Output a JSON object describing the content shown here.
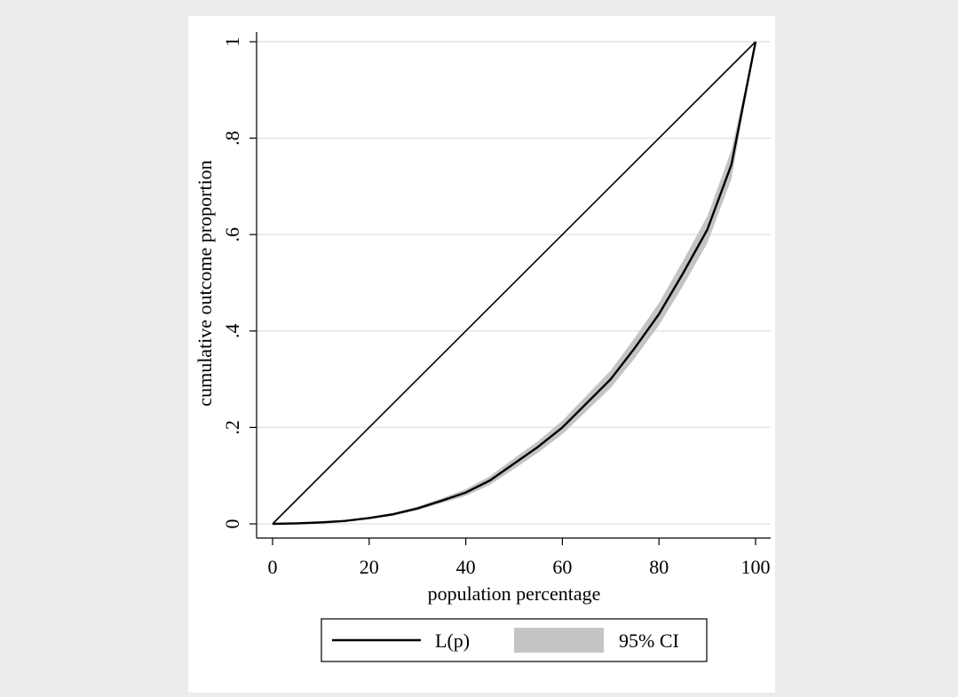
{
  "chart_data": {
    "type": "line",
    "title": "",
    "xlabel": "population percentage",
    "ylabel": "cumulative outcome proportion",
    "xlim": [
      0,
      100
    ],
    "ylim": [
      0,
      1
    ],
    "x_ticks": [
      {
        "value": 0,
        "label": "0"
      },
      {
        "value": 20,
        "label": "20"
      },
      {
        "value": 40,
        "label": "40"
      },
      {
        "value": 60,
        "label": "60"
      },
      {
        "value": 80,
        "label": "80"
      },
      {
        "value": 100,
        "label": "100"
      }
    ],
    "y_ticks": [
      {
        "value": 0,
        "label": "0"
      },
      {
        "value": 0.2,
        "label": ".2"
      },
      {
        "value": 0.4,
        "label": ".4"
      },
      {
        "value": 0.6,
        "label": ".6"
      },
      {
        "value": 0.8,
        "label": ".8"
      },
      {
        "value": 1,
        "label": "1"
      }
    ],
    "grid": true,
    "legend_position": "bottom",
    "series": [
      {
        "name": "L(p)",
        "color": "#000000",
        "x": [
          0,
          5,
          10,
          15,
          20,
          25,
          30,
          35,
          40,
          45,
          50,
          55,
          60,
          65,
          70,
          75,
          80,
          85,
          90,
          95,
          100
        ],
        "y": [
          0,
          0.001,
          0.003,
          0.006,
          0.012,
          0.02,
          0.032,
          0.048,
          0.065,
          0.09,
          0.125,
          0.16,
          0.2,
          0.25,
          0.3,
          0.365,
          0.435,
          0.52,
          0.61,
          0.745,
          1.0
        ]
      },
      {
        "name": "equality line",
        "color": "#000000",
        "x": [
          0,
          100
        ],
        "y": [
          0,
          1
        ]
      }
    ],
    "ci_band": {
      "name": "95% CI",
      "color": "#c4c4c4",
      "x": [
        0,
        5,
        10,
        15,
        20,
        25,
        30,
        35,
        40,
        45,
        50,
        55,
        60,
        65,
        70,
        75,
        80,
        85,
        90,
        95,
        100
      ],
      "lower": [
        0,
        0.0005,
        0.002,
        0.005,
        0.01,
        0.017,
        0.028,
        0.043,
        0.058,
        0.081,
        0.114,
        0.148,
        0.186,
        0.234,
        0.282,
        0.344,
        0.412,
        0.494,
        0.582,
        0.715,
        1.0
      ],
      "upper": [
        0,
        0.0015,
        0.004,
        0.007,
        0.014,
        0.023,
        0.036,
        0.053,
        0.072,
        0.099,
        0.136,
        0.172,
        0.214,
        0.266,
        0.318,
        0.386,
        0.458,
        0.546,
        0.638,
        0.775,
        1.0
      ]
    }
  }
}
